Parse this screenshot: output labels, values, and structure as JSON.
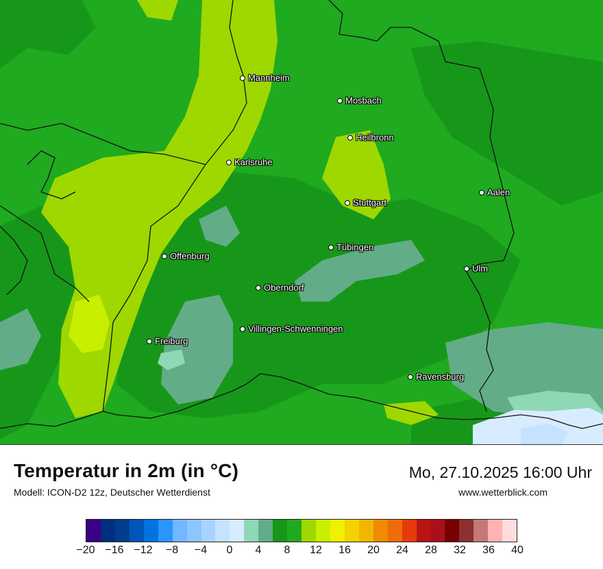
{
  "map": {
    "cities": [
      {
        "name": "Mannheim"
      },
      {
        "name": "Mosbach"
      },
      {
        "name": "Heilbronn"
      },
      {
        "name": "Karlsruhe"
      },
      {
        "name": "Aalen"
      },
      {
        "name": "Stuttgart"
      },
      {
        "name": "Tübingen"
      },
      {
        "name": "Offenburg"
      },
      {
        "name": "Ulm"
      },
      {
        "name": "Oberndorf"
      },
      {
        "name": "Villingen-Schwenningen"
      },
      {
        "name": "Freiburg"
      },
      {
        "name": "Ravensburg"
      }
    ],
    "colors": {
      "temp_10_12": "#1faa1f",
      "temp_8_10": "#17971a",
      "temp_12_14": "#9ed800",
      "temp_14_16": "#c8ee00",
      "temp_6_8": "#62ad87",
      "temp_4_6": "#8fd8b5",
      "temp_2_4": "#d8ecff",
      "temp_0_2": "#c3e3ff"
    }
  },
  "footer": {
    "title": "Temperatur in 2m (in °C)",
    "model": "Modell: ICON-D2 12z, Deutscher Wetterdienst",
    "datetime": "Mo, 27.10.2025 16:00 Uhr",
    "site": "www.wetterblick.com"
  },
  "legend": {
    "colors": [
      "#3b0087",
      "#002e80",
      "#003d8c",
      "#0056b8",
      "#0073e0",
      "#2a95ff",
      "#72b7ff",
      "#8cc6ff",
      "#a9d3ff",
      "#c3e3ff",
      "#d8ecff",
      "#8fd8b5",
      "#62ad87",
      "#17971a",
      "#1faa1f",
      "#9ed800",
      "#c8ee00",
      "#eef200",
      "#f2d200",
      "#f2b600",
      "#f08a00",
      "#ee6c0a",
      "#e63a0a",
      "#b81414",
      "#a8101c",
      "#780000",
      "#8c3030",
      "#c47878",
      "#ffb3b3",
      "#ffdddd"
    ],
    "ticks": [
      "−20",
      "−16",
      "−12",
      "−8",
      "−4",
      "0",
      "4",
      "8",
      "12",
      "16",
      "20",
      "24",
      "28",
      "32",
      "36",
      "40"
    ]
  }
}
